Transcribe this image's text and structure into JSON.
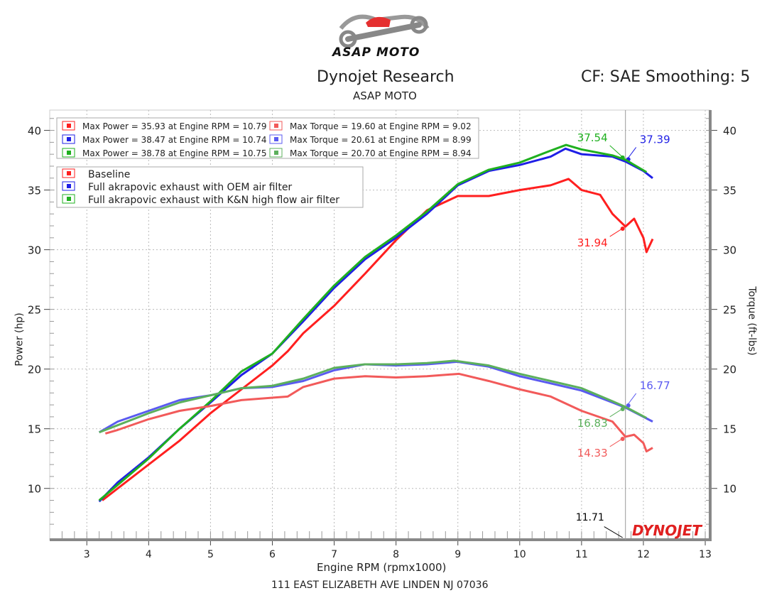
{
  "header": {
    "logo_text": "ASAP MOTO",
    "title": "Dynojet Research",
    "subtitle": "ASAP MOTO",
    "cf": "CF: SAE Smoothing: 5"
  },
  "footer": {
    "address": "111 EAST ELIZABETH AVE LINDEN NJ 07036"
  },
  "colors": {
    "power": [
      "#ff1f1f",
      "#1f1fe6",
      "#1fb01f"
    ],
    "torque": [
      "#f25a5a",
      "#5a5af0",
      "#5cb05c"
    ]
  },
  "chart_data": {
    "type": "line",
    "xlabel": "Engine RPM (rpmx1000)",
    "ylabel": "Power (hp)",
    "y2label": "Torque (ft-lbs)",
    "xlim": [
      2.4,
      13.08
    ],
    "ylim": [
      5.7,
      41.7
    ],
    "xticks": [
      "3",
      "4",
      "5",
      "6",
      "7",
      "8",
      "9",
      "10",
      "11",
      "12",
      "13"
    ],
    "yticks": [
      "10",
      "15",
      "20",
      "25",
      "30",
      "35",
      "40"
    ],
    "grid": true,
    "cursor_rpm": "11.71",
    "watermark": "DYNOJET",
    "max_legend": [
      "Max Power = 35.93 at Engine RPM = 10.79",
      "Max Power = 38.47 at Engine RPM = 10.74",
      "Max Power = 38.78 at Engine RPM = 10.75",
      "Max Torque = 19.60 at Engine RPM = 9.02",
      "Max Torque = 20.61 at Engine RPM = 8.99",
      "Max Torque = 20.70 at Engine RPM = 8.94"
    ],
    "legend": [
      "Baseline",
      "Full akrapovic exhaust with OEM air filter",
      "Full akrapovic exhaust with K&N high flow air filter"
    ],
    "legend_placement": "top-left",
    "series": [
      {
        "name": "Baseline power",
        "kind": "power",
        "run": 0,
        "cursor_label": "31.94",
        "points": [
          [
            3.25,
            9.0
          ],
          [
            3.5,
            10
          ],
          [
            4,
            12
          ],
          [
            4.5,
            14
          ],
          [
            5,
            16.3
          ],
          [
            5.5,
            18.3
          ],
          [
            6,
            20.3
          ],
          [
            6.25,
            21.5
          ],
          [
            6.5,
            23
          ],
          [
            7,
            25.3
          ],
          [
            7.5,
            28
          ],
          [
            8,
            30.8
          ],
          [
            8.5,
            33.3
          ],
          [
            9,
            34.5
          ],
          [
            9.5,
            34.5
          ],
          [
            10,
            35
          ],
          [
            10.5,
            35.4
          ],
          [
            10.79,
            35.93
          ],
          [
            11,
            35
          ],
          [
            11.3,
            34.6
          ],
          [
            11.5,
            33
          ],
          [
            11.71,
            31.94
          ],
          [
            11.85,
            32.6
          ],
          [
            12,
            31
          ],
          [
            12.05,
            29.8
          ],
          [
            12.15,
            30.9
          ]
        ]
      },
      {
        "name": "OEM air filter power",
        "kind": "power",
        "run": 1,
        "cursor_label": "37.39",
        "points": [
          [
            3.2,
            8.9
          ],
          [
            3.5,
            10.5
          ],
          [
            4,
            12.6
          ],
          [
            4.5,
            15
          ],
          [
            5,
            17.2
          ],
          [
            5.5,
            19.5
          ],
          [
            6,
            21.3
          ],
          [
            6.5,
            24
          ],
          [
            7,
            26.8
          ],
          [
            7.5,
            29.2
          ],
          [
            8,
            31
          ],
          [
            8.5,
            33
          ],
          [
            9,
            35.4
          ],
          [
            9.5,
            36.6
          ],
          [
            10,
            37.1
          ],
          [
            10.5,
            37.8
          ],
          [
            10.74,
            38.47
          ],
          [
            11,
            38
          ],
          [
            11.5,
            37.8
          ],
          [
            11.71,
            37.39
          ],
          [
            12,
            36.6
          ],
          [
            12.15,
            36
          ]
        ]
      },
      {
        "name": "K&N power",
        "kind": "power",
        "run": 2,
        "cursor_label": "37.54",
        "points": [
          [
            3.2,
            9.0
          ],
          [
            3.5,
            10.3
          ],
          [
            4,
            12.5
          ],
          [
            4.5,
            15
          ],
          [
            5,
            17.3
          ],
          [
            5.5,
            19.8
          ],
          [
            6,
            21.3
          ],
          [
            6.5,
            24.2
          ],
          [
            7,
            27
          ],
          [
            7.5,
            29.4
          ],
          [
            8,
            31.2
          ],
          [
            8.5,
            33.2
          ],
          [
            9,
            35.5
          ],
          [
            9.5,
            36.7
          ],
          [
            10,
            37.3
          ],
          [
            10.5,
            38.3
          ],
          [
            10.75,
            38.78
          ],
          [
            11,
            38.4
          ],
          [
            11.5,
            37.9
          ],
          [
            11.71,
            37.54
          ],
          [
            12.05,
            36.5
          ]
        ]
      },
      {
        "name": "Baseline torque",
        "kind": "torque",
        "run": 0,
        "cursor_label": "14.33",
        "points": [
          [
            3.3,
            14.6
          ],
          [
            3.5,
            14.9
          ],
          [
            4,
            15.8
          ],
          [
            4.5,
            16.5
          ],
          [
            5,
            16.9
          ],
          [
            5.5,
            17.4
          ],
          [
            6,
            17.6
          ],
          [
            6.25,
            17.7
          ],
          [
            6.5,
            18.5
          ],
          [
            7,
            19.2
          ],
          [
            7.5,
            19.4
          ],
          [
            8,
            19.3
          ],
          [
            8.5,
            19.4
          ],
          [
            9.02,
            19.6
          ],
          [
            9.5,
            19
          ],
          [
            10,
            18.3
          ],
          [
            10.5,
            17.7
          ],
          [
            11,
            16.5
          ],
          [
            11.5,
            15.6
          ],
          [
            11.71,
            14.33
          ],
          [
            11.85,
            14.5
          ],
          [
            12,
            13.8
          ],
          [
            12.05,
            13.1
          ],
          [
            12.15,
            13.4
          ]
        ]
      },
      {
        "name": "OEM air filter torque",
        "kind": "torque",
        "run": 1,
        "cursor_label": "16.77",
        "points": [
          [
            3.2,
            14.7
          ],
          [
            3.5,
            15.6
          ],
          [
            4,
            16.5
          ],
          [
            4.5,
            17.4
          ],
          [
            5,
            17.8
          ],
          [
            5.5,
            18.4
          ],
          [
            6,
            18.5
          ],
          [
            6.5,
            19
          ],
          [
            7,
            19.9
          ],
          [
            7.5,
            20.4
          ],
          [
            8,
            20.3
          ],
          [
            8.5,
            20.4
          ],
          [
            8.99,
            20.61
          ],
          [
            9.5,
            20.2
          ],
          [
            10,
            19.4
          ],
          [
            10.5,
            18.8
          ],
          [
            11,
            18.2
          ],
          [
            11.5,
            17.2
          ],
          [
            11.71,
            16.77
          ],
          [
            12.15,
            15.6
          ]
        ]
      },
      {
        "name": "K&N torque",
        "kind": "torque",
        "run": 2,
        "cursor_label": "16.83",
        "points": [
          [
            3.2,
            14.7
          ],
          [
            3.5,
            15.3
          ],
          [
            4,
            16.3
          ],
          [
            4.5,
            17.2
          ],
          [
            5,
            17.8
          ],
          [
            5.5,
            18.4
          ],
          [
            6,
            18.6
          ],
          [
            6.5,
            19.2
          ],
          [
            7,
            20.1
          ],
          [
            7.5,
            20.4
          ],
          [
            8,
            20.4
          ],
          [
            8.5,
            20.5
          ],
          [
            8.94,
            20.7
          ],
          [
            9.5,
            20.3
          ],
          [
            10,
            19.6
          ],
          [
            10.5,
            19
          ],
          [
            11,
            18.4
          ],
          [
            11.5,
            17.3
          ],
          [
            11.71,
            16.83
          ],
          [
            12.05,
            15.9
          ]
        ]
      }
    ]
  }
}
